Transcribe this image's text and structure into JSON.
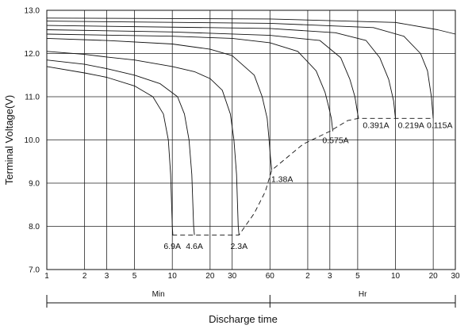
{
  "chart_data": {
    "type": "line",
    "title": "",
    "xlabel": "Discharge time",
    "ylabel": "Terminal Voltage(V)",
    "xscale": "log",
    "ylim": [
      7.0,
      13.0
    ],
    "yticks": [
      "7.0",
      "8.0",
      "9.0",
      "10.0",
      "11.0",
      "12.0",
      "13.0"
    ],
    "xticks": [
      {
        "label": "1",
        "min": 1
      },
      {
        "label": "2",
        "min": 2
      },
      {
        "label": "3",
        "min": 3
      },
      {
        "label": "5",
        "min": 5
      },
      {
        "label": "10",
        "min": 10
      },
      {
        "label": "20",
        "min": 20
      },
      {
        "label": "30",
        "min": 30
      },
      {
        "label": "60",
        "min": 60
      },
      {
        "label": "2",
        "min": 120
      },
      {
        "label": "3",
        "min": 180
      },
      {
        "label": "5",
        "min": 300
      },
      {
        "label": "10",
        "min": 600
      },
      {
        "label": "20",
        "min": 1200
      },
      {
        "label": "30",
        "min": 1800
      }
    ],
    "xlim_min": [
      1,
      1800
    ],
    "segments": [
      {
        "label": "Min",
        "from_min": 1,
        "to_min": 60
      },
      {
        "label": "Hr",
        "from_min": 60,
        "to_min": 1800
      }
    ],
    "grid": true,
    "series": [
      {
        "name": "6.9A",
        "points": [
          [
            1,
            11.7
          ],
          [
            2,
            11.55
          ],
          [
            3,
            11.45
          ],
          [
            5,
            11.25
          ],
          [
            7,
            11.0
          ],
          [
            8.5,
            10.6
          ],
          [
            9.3,
            10.0
          ],
          [
            9.7,
            9.2
          ],
          [
            10,
            8.0
          ],
          [
            10.1,
            7.8
          ]
        ]
      },
      {
        "name": "4.6A",
        "points": [
          [
            1,
            11.85
          ],
          [
            2,
            11.75
          ],
          [
            3,
            11.65
          ],
          [
            5,
            11.5
          ],
          [
            8,
            11.3
          ],
          [
            11,
            11.0
          ],
          [
            12.5,
            10.6
          ],
          [
            13.6,
            10.0
          ],
          [
            14.3,
            9.2
          ],
          [
            14.8,
            8.0
          ],
          [
            15,
            7.8
          ]
        ]
      },
      {
        "name": "2.3A",
        "points": [
          [
            1,
            12.05
          ],
          [
            2,
            11.98
          ],
          [
            3,
            11.92
          ],
          [
            5,
            11.85
          ],
          [
            10,
            11.7
          ],
          [
            15,
            11.58
          ],
          [
            20,
            11.42
          ],
          [
            25,
            11.15
          ],
          [
            29,
            10.6
          ],
          [
            31,
            10.0
          ],
          [
            32.5,
            9.2
          ],
          [
            33.5,
            8.0
          ],
          [
            34,
            7.8
          ]
        ]
      },
      {
        "name": "1.38A",
        "points": [
          [
            1,
            12.35
          ],
          [
            3,
            12.3
          ],
          [
            10,
            12.22
          ],
          [
            20,
            12.1
          ],
          [
            30,
            11.95
          ],
          [
            45,
            11.5
          ],
          [
            52,
            11.0
          ],
          [
            57,
            10.5
          ],
          [
            59,
            10.0
          ],
          [
            60.5,
            9.6
          ],
          [
            62,
            9.3
          ]
        ]
      },
      {
        "name": "0.575A",
        "points": [
          [
            1,
            12.45
          ],
          [
            10,
            12.4
          ],
          [
            30,
            12.35
          ],
          [
            60,
            12.25
          ],
          [
            100,
            12.05
          ],
          [
            140,
            11.6
          ],
          [
            165,
            11.1
          ],
          [
            175,
            10.8
          ],
          [
            185,
            10.5
          ],
          [
            190,
            10.2
          ]
        ]
      },
      {
        "name": "0.391A",
        "points": [
          [
            1,
            12.55
          ],
          [
            10,
            12.5
          ],
          [
            60,
            12.42
          ],
          [
            150,
            12.3
          ],
          [
            220,
            11.9
          ],
          [
            260,
            11.4
          ],
          [
            285,
            11.0
          ],
          [
            300,
            10.6
          ],
          [
            305,
            10.5
          ]
        ]
      },
      {
        "name": "0.219A",
        "points": [
          [
            1,
            12.65
          ],
          [
            60,
            12.58
          ],
          [
            200,
            12.48
          ],
          [
            350,
            12.3
          ],
          [
            450,
            11.9
          ],
          [
            530,
            11.4
          ],
          [
            580,
            10.9
          ],
          [
            600,
            10.5
          ]
        ]
      },
      {
        "name": "0.115A",
        "points": [
          [
            1,
            12.75
          ],
          [
            60,
            12.7
          ],
          [
            400,
            12.6
          ],
          [
            700,
            12.4
          ],
          [
            950,
            12.0
          ],
          [
            1080,
            11.6
          ],
          [
            1160,
            11.0
          ],
          [
            1200,
            10.5
          ]
        ]
      },
      {
        "name": "",
        "points": [
          [
            1,
            12.82
          ],
          [
            60,
            12.8
          ],
          [
            600,
            12.72
          ],
          [
            1300,
            12.55
          ],
          [
            1800,
            12.45
          ]
        ]
      }
    ],
    "cutoff_line": [
      [
        10,
        7.8
      ],
      [
        34,
        7.8
      ],
      [
        45,
        8.3
      ],
      [
        55,
        8.8
      ],
      [
        62,
        9.3
      ],
      [
        110,
        9.9
      ],
      [
        180,
        10.2
      ],
      [
        250,
        10.45
      ],
      [
        305,
        10.5
      ],
      [
        1200,
        10.5
      ]
    ],
    "annotations": [
      {
        "text": "6.9A",
        "min": 10,
        "v": 7.55
      },
      {
        "text": "4.6A",
        "min": 15,
        "v": 7.55
      },
      {
        "text": "2.3A",
        "min": 34,
        "v": 7.55
      },
      {
        "text": "1.38A",
        "min": 75,
        "v": 9.1
      },
      {
        "text": "0.575A",
        "min": 200,
        "v": 10.0
      },
      {
        "text": "0.391A",
        "min": 420,
        "v": 10.35
      },
      {
        "text": "0.219A",
        "min": 800,
        "v": 10.35
      },
      {
        "text": "0.115A",
        "min": 1350,
        "v": 10.35
      }
    ]
  }
}
